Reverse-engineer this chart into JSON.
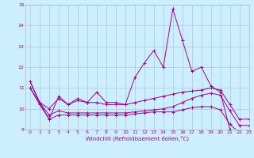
{
  "xlabel": "Windchill (Refroidissement éolien,°C)",
  "x": [
    0,
    1,
    2,
    3,
    4,
    5,
    6,
    7,
    8,
    9,
    10,
    11,
    12,
    13,
    14,
    15,
    16,
    17,
    18,
    19,
    20,
    21,
    22,
    23
  ],
  "line1": [
    11.3,
    10.3,
    9.5,
    10.6,
    10.2,
    10.5,
    10.3,
    10.8,
    10.3,
    10.3,
    10.2,
    11.5,
    12.2,
    12.8,
    12.0,
    14.8,
    13.3,
    11.8,
    12.0,
    11.1,
    10.8,
    9.0,
    8.8,
    8.8
  ],
  "line2": [
    11.3,
    10.3,
    10.0,
    10.5,
    10.2,
    10.4,
    10.3,
    10.3,
    10.2,
    10.2,
    10.2,
    10.3,
    10.4,
    10.5,
    10.6,
    10.7,
    10.8,
    10.85,
    10.9,
    11.0,
    10.9,
    10.2,
    9.5,
    9.5
  ],
  "line3": [
    11.0,
    10.3,
    9.7,
    9.9,
    9.8,
    9.8,
    9.8,
    9.8,
    9.8,
    9.8,
    9.8,
    9.85,
    9.9,
    9.95,
    10.0,
    10.1,
    10.3,
    10.5,
    10.65,
    10.75,
    10.65,
    9.9,
    9.2,
    9.2
  ],
  "line4": [
    11.0,
    10.2,
    9.5,
    9.7,
    9.7,
    9.7,
    9.7,
    9.7,
    9.7,
    9.7,
    9.7,
    9.75,
    9.8,
    9.85,
    9.85,
    9.85,
    9.95,
    10.05,
    10.1,
    10.1,
    9.95,
    9.25,
    8.85,
    8.8
  ],
  "line_color": "#990099",
  "background_color": "#cceeff",
  "grid_color": "#aabbcc",
  "ylim": [
    9,
    15
  ],
  "xlim": [
    -0.5,
    23
  ]
}
